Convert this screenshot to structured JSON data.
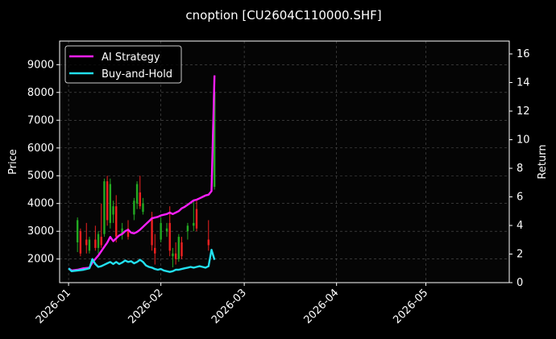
{
  "chart_data": {
    "type": "line",
    "title": "cnoption [CU2604C110000.SHF]",
    "xlabel": "",
    "ylabel": "Price",
    "y2label": "Return",
    "x_ticks": [
      "2026-01",
      "2026-02",
      "2026-03",
      "2026-04",
      "2026-05"
    ],
    "x_range": [
      "2025-12-29",
      "2026-05-29"
    ],
    "y_ticks": [
      2000,
      3000,
      4000,
      5000,
      6000,
      7000,
      8000,
      9000
    ],
    "y_range": [
      1150,
      9850
    ],
    "y2_ticks": [
      0,
      2,
      4,
      6,
      8,
      10,
      12,
      14,
      16
    ],
    "y2_range": [
      0,
      16.9
    ],
    "grid": true,
    "legend_position": "top-left",
    "colors": {
      "background": "#000000",
      "ai_strategy": "#ff1fff",
      "buy_and_hold": "#22e0f0",
      "candle_up": "#22aa22",
      "candle_down": "#ee2020",
      "grid": "#555555"
    },
    "candles": [
      {
        "date": "2026-01-04",
        "open": 2600,
        "high": 3500,
        "low": 2250,
        "close": 3400
      },
      {
        "date": "2026-01-05",
        "open": 3000,
        "high": 3100,
        "low": 2100,
        "close": 2200
      },
      {
        "date": "2026-01-07",
        "open": 2700,
        "high": 3300,
        "low": 2200,
        "close": 2500
      },
      {
        "date": "2026-01-08",
        "open": 2300,
        "high": 2800,
        "low": 2200,
        "close": 2700
      },
      {
        "date": "2026-01-10",
        "open": 2700,
        "high": 3200,
        "low": 2300,
        "close": 2400
      },
      {
        "date": "2026-01-11",
        "open": 2400,
        "high": 3000,
        "low": 2200,
        "close": 2900
      },
      {
        "date": "2026-01-12",
        "open": 2800,
        "high": 4000,
        "low": 2400,
        "close": 2500
      },
      {
        "date": "2026-01-13",
        "open": 2900,
        "high": 4900,
        "low": 2800,
        "close": 4800
      },
      {
        "date": "2026-01-14",
        "open": 4800,
        "high": 5000,
        "low": 3200,
        "close": 3400
      },
      {
        "date": "2026-01-15",
        "open": 3300,
        "high": 4900,
        "low": 3100,
        "close": 4700
      },
      {
        "date": "2026-01-16",
        "open": 3600,
        "high": 4100,
        "low": 3300,
        "close": 3900
      },
      {
        "date": "2026-01-17",
        "open": 3900,
        "high": 4300,
        "low": 2600,
        "close": 2800
      },
      {
        "date": "2026-01-19",
        "open": 2900,
        "high": 3300,
        "low": 2700,
        "close": 3100
      },
      {
        "date": "2026-01-21",
        "open": 3100,
        "high": 3400,
        "low": 2700,
        "close": 2800
      },
      {
        "date": "2026-01-23",
        "open": 3600,
        "high": 4200,
        "low": 3400,
        "close": 4100
      },
      {
        "date": "2026-01-24",
        "open": 4000,
        "high": 4800,
        "low": 3800,
        "close": 4700
      },
      {
        "date": "2026-01-25",
        "open": 4400,
        "high": 5000,
        "low": 3800,
        "close": 3900
      },
      {
        "date": "2026-01-26",
        "open": 3700,
        "high": 4200,
        "low": 3600,
        "close": 4000
      },
      {
        "date": "2026-01-29",
        "open": 3500,
        "high": 3700,
        "low": 2300,
        "close": 2500
      },
      {
        "date": "2026-01-30",
        "open": 2400,
        "high": 2900,
        "low": 1800,
        "close": 2200
      },
      {
        "date": "2026-02-01",
        "open": 2700,
        "high": 3500,
        "low": 2600,
        "close": 3300
      },
      {
        "date": "2026-02-03",
        "open": 3000,
        "high": 3300,
        "low": 2800,
        "close": 3100
      },
      {
        "date": "2026-02-04",
        "open": 3300,
        "high": 3900,
        "low": 2100,
        "close": 2300
      },
      {
        "date": "2026-02-05",
        "open": 2100,
        "high": 2400,
        "low": 1700,
        "close": 2200
      },
      {
        "date": "2026-02-06",
        "open": 2200,
        "high": 2600,
        "low": 1800,
        "close": 2000
      },
      {
        "date": "2026-02-07",
        "open": 2000,
        "high": 2900,
        "low": 1900,
        "close": 2800
      },
      {
        "date": "2026-02-08",
        "open": 2600,
        "high": 2800,
        "low": 2000,
        "close": 2100
      },
      {
        "date": "2026-02-10",
        "open": 3000,
        "high": 3300,
        "low": 2700,
        "close": 3200
      },
      {
        "date": "2026-02-12",
        "open": 3200,
        "high": 4100,
        "low": 3000,
        "close": 3300
      },
      {
        "date": "2026-02-13",
        "open": 3800,
        "high": 4100,
        "low": 3000,
        "close": 3100
      },
      {
        "date": "2026-02-17",
        "open": 2700,
        "high": 3400,
        "low": 2300,
        "close": 2500
      },
      {
        "date": "2026-02-19",
        "open": 4600,
        "high": 8200,
        "low": 4500,
        "close": 8000
      }
    ],
    "series": [
      {
        "name": "AI Strategy",
        "color": "#ff1fff",
        "axis": "right",
        "points": [
          [
            "2026-01-01",
            1.0
          ],
          [
            "2026-01-02",
            0.85
          ],
          [
            "2026-01-04",
            0.9
          ],
          [
            "2026-01-06",
            1.0
          ],
          [
            "2026-01-08",
            1.05
          ],
          [
            "2026-01-09",
            1.4
          ],
          [
            "2026-01-10",
            1.65
          ],
          [
            "2026-01-11",
            1.9
          ],
          [
            "2026-01-12",
            2.2
          ],
          [
            "2026-01-13",
            2.5
          ],
          [
            "2026-01-14",
            2.8
          ],
          [
            "2026-01-15",
            3.2
          ],
          [
            "2026-01-16",
            2.9
          ],
          [
            "2026-01-17",
            3.1
          ],
          [
            "2026-01-18",
            3.3
          ],
          [
            "2026-01-19",
            3.4
          ],
          [
            "2026-01-20",
            3.6
          ],
          [
            "2026-01-21",
            3.7
          ],
          [
            "2026-01-22",
            3.5
          ],
          [
            "2026-01-23",
            3.45
          ],
          [
            "2026-01-24",
            3.55
          ],
          [
            "2026-01-25",
            3.7
          ],
          [
            "2026-01-26",
            3.9
          ],
          [
            "2026-01-27",
            4.1
          ],
          [
            "2026-01-28",
            4.3
          ],
          [
            "2026-01-29",
            4.5
          ],
          [
            "2026-01-30",
            4.55
          ],
          [
            "2026-01-31",
            4.6
          ],
          [
            "2026-02-01",
            4.7
          ],
          [
            "2026-02-02",
            4.75
          ],
          [
            "2026-02-03",
            4.8
          ],
          [
            "2026-02-04",
            4.9
          ],
          [
            "2026-02-05",
            4.8
          ],
          [
            "2026-02-06",
            4.9
          ],
          [
            "2026-02-07",
            5.0
          ],
          [
            "2026-02-08",
            5.2
          ],
          [
            "2026-02-09",
            5.3
          ],
          [
            "2026-02-10",
            5.45
          ],
          [
            "2026-02-11",
            5.6
          ],
          [
            "2026-02-12",
            5.75
          ],
          [
            "2026-02-13",
            5.8
          ],
          [
            "2026-02-14",
            5.9
          ],
          [
            "2026-02-15",
            6.0
          ],
          [
            "2026-02-16",
            6.1
          ],
          [
            "2026-02-17",
            6.15
          ],
          [
            "2026-02-18",
            6.4
          ],
          [
            "2026-02-19",
            14.5
          ]
        ]
      },
      {
        "name": "Buy-and-Hold",
        "color": "#22e0f0",
        "axis": "right",
        "points": [
          [
            "2026-01-01",
            1.0
          ],
          [
            "2026-01-02",
            0.8
          ],
          [
            "2026-01-04",
            0.85
          ],
          [
            "2026-01-06",
            0.9
          ],
          [
            "2026-01-08",
            1.0
          ],
          [
            "2026-01-09",
            1.65
          ],
          [
            "2026-01-10",
            1.3
          ],
          [
            "2026-01-11",
            1.1
          ],
          [
            "2026-01-12",
            1.15
          ],
          [
            "2026-01-13",
            1.25
          ],
          [
            "2026-01-14",
            1.35
          ],
          [
            "2026-01-15",
            1.45
          ],
          [
            "2026-01-16",
            1.3
          ],
          [
            "2026-01-17",
            1.45
          ],
          [
            "2026-01-18",
            1.3
          ],
          [
            "2026-01-19",
            1.4
          ],
          [
            "2026-01-20",
            1.55
          ],
          [
            "2026-01-21",
            1.45
          ],
          [
            "2026-01-22",
            1.5
          ],
          [
            "2026-01-23",
            1.35
          ],
          [
            "2026-01-24",
            1.45
          ],
          [
            "2026-01-25",
            1.6
          ],
          [
            "2026-01-26",
            1.45
          ],
          [
            "2026-01-27",
            1.2
          ],
          [
            "2026-01-28",
            1.1
          ],
          [
            "2026-01-29",
            1.05
          ],
          [
            "2026-01-30",
            0.95
          ],
          [
            "2026-01-31",
            0.9
          ],
          [
            "2026-02-01",
            0.95
          ],
          [
            "2026-02-02",
            0.85
          ],
          [
            "2026-02-03",
            0.8
          ],
          [
            "2026-02-04",
            0.75
          ],
          [
            "2026-02-05",
            0.8
          ],
          [
            "2026-02-06",
            0.9
          ],
          [
            "2026-02-07",
            0.9
          ],
          [
            "2026-02-08",
            0.95
          ],
          [
            "2026-02-09",
            1.0
          ],
          [
            "2026-02-10",
            1.05
          ],
          [
            "2026-02-11",
            1.1
          ],
          [
            "2026-02-12",
            1.05
          ],
          [
            "2026-02-13",
            1.1
          ],
          [
            "2026-02-14",
            1.15
          ],
          [
            "2026-02-15",
            1.1
          ],
          [
            "2026-02-16",
            1.05
          ],
          [
            "2026-02-17",
            1.15
          ],
          [
            "2026-02-18",
            2.3
          ],
          [
            "2026-02-19",
            1.6
          ]
        ]
      }
    ]
  }
}
